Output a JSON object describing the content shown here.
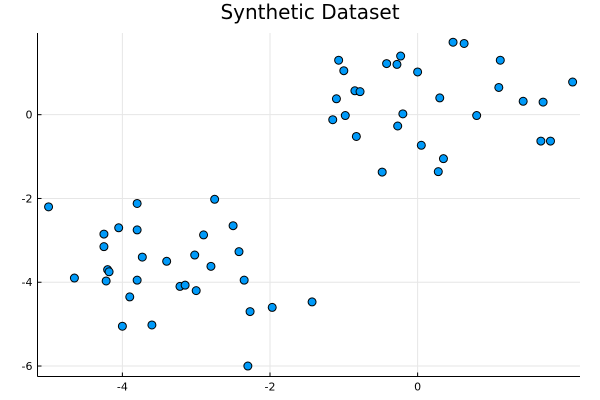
{
  "chart_data": {
    "type": "scatter",
    "title": "Synthetic Dataset",
    "xlabel": "",
    "ylabel": "",
    "xlim": [
      -5.15,
      2.2
    ],
    "ylim": [
      -6.25,
      1.95
    ],
    "x_ticks": [
      -4,
      -2,
      0
    ],
    "y_ticks": [
      -6,
      -4,
      -2,
      0
    ],
    "x_tick_labels": [
      "-4",
      "-2",
      "0"
    ],
    "y_tick_labels": [
      "-6",
      "-4",
      "-2",
      "0"
    ],
    "grid": true,
    "legend": false,
    "marker_color": "#009af9",
    "series": [
      {
        "points": [
          [
            -5.0,
            -2.2
          ],
          [
            -4.65,
            -3.9
          ],
          [
            -4.25,
            -2.85
          ],
          [
            -4.25,
            -3.15
          ],
          [
            -4.2,
            -3.7
          ],
          [
            -4.22,
            -3.97
          ],
          [
            -4.18,
            -3.75
          ],
          [
            -4.05,
            -2.7
          ],
          [
            -4.0,
            -5.05
          ],
          [
            -3.9,
            -4.35
          ],
          [
            -3.8,
            -2.12
          ],
          [
            -3.8,
            -2.75
          ],
          [
            -3.8,
            -3.95
          ],
          [
            -3.73,
            -3.4
          ],
          [
            -3.6,
            -5.02
          ],
          [
            -3.4,
            -3.5
          ],
          [
            -3.22,
            -4.1
          ],
          [
            -3.15,
            -4.07
          ],
          [
            -3.02,
            -3.35
          ],
          [
            -3.0,
            -4.2
          ],
          [
            -2.9,
            -2.87
          ],
          [
            -2.8,
            -3.62
          ],
          [
            -2.75,
            -2.02
          ],
          [
            -2.5,
            -2.65
          ],
          [
            -2.42,
            -3.27
          ],
          [
            -2.35,
            -3.95
          ],
          [
            -2.3,
            -6.0
          ],
          [
            -2.27,
            -4.7
          ],
          [
            -1.97,
            -4.6
          ],
          [
            -1.43,
            -4.47
          ],
          [
            -1.15,
            -0.12
          ],
          [
            -1.1,
            0.38
          ],
          [
            -1.07,
            1.3
          ],
          [
            -1.0,
            1.05
          ],
          [
            -0.98,
            -0.02
          ],
          [
            -0.85,
            0.57
          ],
          [
            -0.83,
            -0.52
          ],
          [
            -0.78,
            0.55
          ],
          [
            -0.48,
            -1.37
          ],
          [
            -0.42,
            1.22
          ],
          [
            -0.28,
            1.2
          ],
          [
            -0.27,
            -0.27
          ],
          [
            -0.23,
            1.4
          ],
          [
            -0.2,
            0.02
          ],
          [
            0.0,
            1.02
          ],
          [
            0.05,
            -0.73
          ],
          [
            0.28,
            -1.36
          ],
          [
            0.3,
            0.4
          ],
          [
            0.35,
            -1.05
          ],
          [
            0.48,
            1.73
          ],
          [
            0.63,
            1.7
          ],
          [
            0.8,
            -0.02
          ],
          [
            1.1,
            0.65
          ],
          [
            1.12,
            1.3
          ],
          [
            1.43,
            0.32
          ],
          [
            1.67,
            -0.63
          ],
          [
            1.7,
            0.3
          ],
          [
            1.8,
            -0.63
          ],
          [
            2.1,
            0.78
          ]
        ]
      }
    ]
  }
}
